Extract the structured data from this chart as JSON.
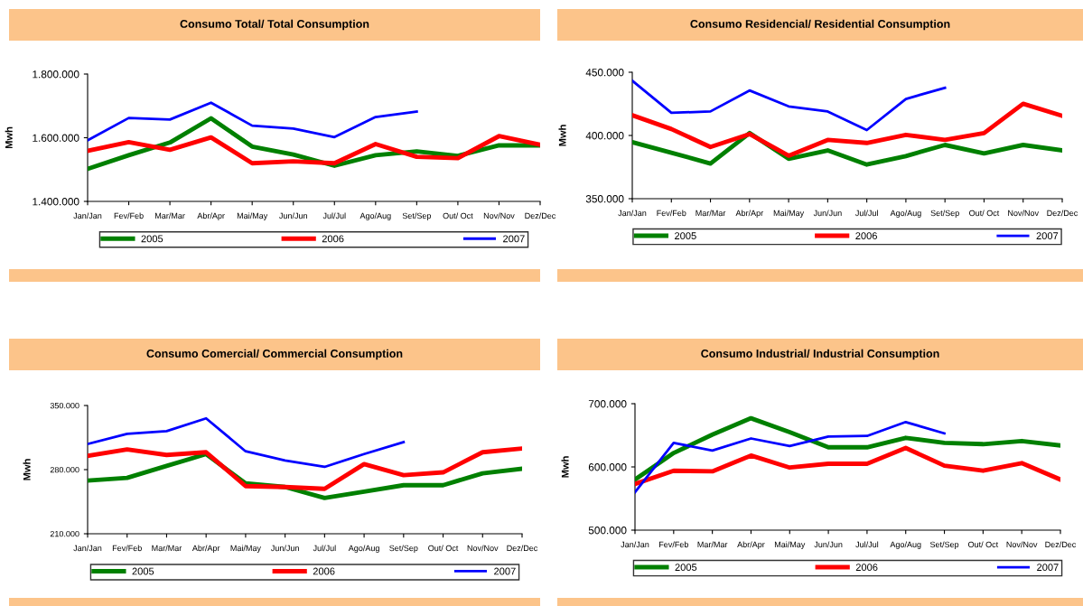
{
  "chart_data": [
    {
      "type": "line",
      "title": "Consumo Total/ Total Consumption",
      "ylabel": "Mwh",
      "categories": [
        "Jan/Jan",
        "Fev/Feb",
        "Mar/Mar",
        "Abr/Apr",
        "Mai/May",
        "Jun/Jun",
        "Jul/Jul",
        "Ago/Aug",
        "Set/Sep",
        "Out/ Oct",
        "Nov/Nov",
        "Dez/Dec"
      ],
      "ylim": [
        1400000,
        1800000
      ],
      "yticks": [
        {
          "value": 1400000,
          "label": "1.400.000"
        },
        {
          "value": 1600000,
          "label": "1.600.000"
        },
        {
          "value": 1800000,
          "label": "1.800.000"
        }
      ],
      "grid": false,
      "legend": "bottom",
      "series": [
        {
          "name": "2005",
          "color": "#008000",
          "values": [
            1502000,
            1545000,
            1585000,
            1661000,
            1572000,
            1547000,
            1512000,
            1545000,
            1557000,
            1543000,
            1576000,
            1576000
          ]
        },
        {
          "name": "2006",
          "color": "#ff0000",
          "values": [
            1559000,
            1586000,
            1562000,
            1601000,
            1520000,
            1526000,
            1520000,
            1580000,
            1540000,
            1536000,
            1605000,
            1578000
          ]
        },
        {
          "name": "2007",
          "color": "#0000ff",
          "values": [
            1592000,
            1662000,
            1657000,
            1710000,
            1638000,
            1629000,
            1602000,
            1665000,
            1682000,
            null,
            null,
            null
          ]
        }
      ]
    },
    {
      "type": "line",
      "title": "Consumo Residencial/ Residential Consumption",
      "ylabel": "Mwh",
      "categories": [
        "Jan/Jan",
        "Fev/Feb",
        "Mar/Mar",
        "Abr/Apr",
        "Mai/May",
        "Jun/Jun",
        "Jul/Jul",
        "Ago/Aug",
        "Set/Sep",
        "Out/ Oct",
        "Nov/Nov",
        "Dez/Dec"
      ],
      "ylim": [
        350000,
        450000
      ],
      "yticks": [
        {
          "value": 350000,
          "label": "350.000"
        },
        {
          "value": 400000,
          "label": "400.000"
        },
        {
          "value": 450000,
          "label": "450.000"
        }
      ],
      "grid": false,
      "legend": "bottom",
      "series": [
        {
          "name": "2005",
          "color": "#008000",
          "values": [
            394700,
            386400,
            377800,
            401900,
            381600,
            388200,
            377000,
            383700,
            392500,
            385800,
            392500,
            388200
          ]
        },
        {
          "name": "2006",
          "color": "#ff0000",
          "values": [
            416000,
            405100,
            390900,
            401100,
            384000,
            396500,
            394100,
            400500,
            396500,
            401900,
            425100,
            415500
          ]
        },
        {
          "name": "2007",
          "color": "#0000ff",
          "values": [
            443300,
            417900,
            419000,
            435600,
            423000,
            419000,
            404300,
            428900,
            437700,
            null,
            null,
            null
          ]
        }
      ]
    },
    {
      "type": "line",
      "title": "Consumo Comercial/ Commercial Consumption",
      "ylabel": "Mwh",
      "categories": [
        "Jan/Jan",
        "Fev/Feb",
        "Mar/Mar",
        "Abr/Apr",
        "Mai/May",
        "Jun/Jun",
        "Jul/Jul",
        "Ago/Aug",
        "Set/Sep",
        "Out/ Oct",
        "Nov/Nov",
        "Dez/Dec"
      ],
      "ylim": [
        210000,
        350000
      ],
      "yticks": [
        {
          "value": 210000,
          "label": "210.000"
        },
        {
          "value": 280000,
          "label": "280.000"
        },
        {
          "value": 350000,
          "label": "350.000"
        }
      ],
      "grid": false,
      "legend": "bottom",
      "series": [
        {
          "name": "2005",
          "color": "#008000",
          "values": [
            268000,
            271000,
            284000,
            297000,
            265000,
            261000,
            249000,
            256000,
            263000,
            263000,
            276000,
            281000
          ]
        },
        {
          "name": "2006",
          "color": "#ff0000",
          "values": [
            295000,
            302000,
            296000,
            299000,
            262000,
            261000,
            259000,
            286000,
            274000,
            277000,
            299000,
            303000
          ]
        },
        {
          "name": "2007",
          "color": "#0000ff",
          "values": [
            308000,
            319000,
            322000,
            336000,
            300000,
            290000,
            283000,
            297000,
            310000,
            null,
            null,
            null
          ]
        }
      ]
    },
    {
      "type": "line",
      "title": "Consumo Industrial/ Industrial Consumption",
      "ylabel": "Mwh",
      "categories": [
        "Jan/Jan",
        "Fev/Feb",
        "Mar/Mar",
        "Abr/Apr",
        "Mai/May",
        "Jun/Jun",
        "Jul/Jul",
        "Ago/Aug",
        "Set/Sep",
        "Out/ Oct",
        "Nov/Nov",
        "Dez/Dec"
      ],
      "ylim": [
        500000,
        700000
      ],
      "yticks": [
        {
          "value": 500000,
          "label": "500.000"
        },
        {
          "value": 600000,
          "label": "600.000"
        },
        {
          "value": 700000,
          "label": "700.000"
        }
      ],
      "grid": false,
      "legend": "bottom",
      "series": [
        {
          "name": "2005",
          "color": "#008000",
          "values": [
            580000,
            622000,
            651000,
            677000,
            655000,
            631000,
            631000,
            646000,
            638000,
            636000,
            641000,
            634000
          ]
        },
        {
          "name": "2006",
          "color": "#ff0000",
          "values": [
            573000,
            594000,
            593000,
            618000,
            599000,
            605000,
            605000,
            630000,
            602000,
            594000,
            606000,
            580000
          ]
        },
        {
          "name": "2007",
          "color": "#0000ff",
          "values": [
            560000,
            638000,
            626000,
            645000,
            633000,
            648000,
            649000,
            671000,
            653000,
            null,
            null,
            null
          ]
        }
      ]
    }
  ]
}
